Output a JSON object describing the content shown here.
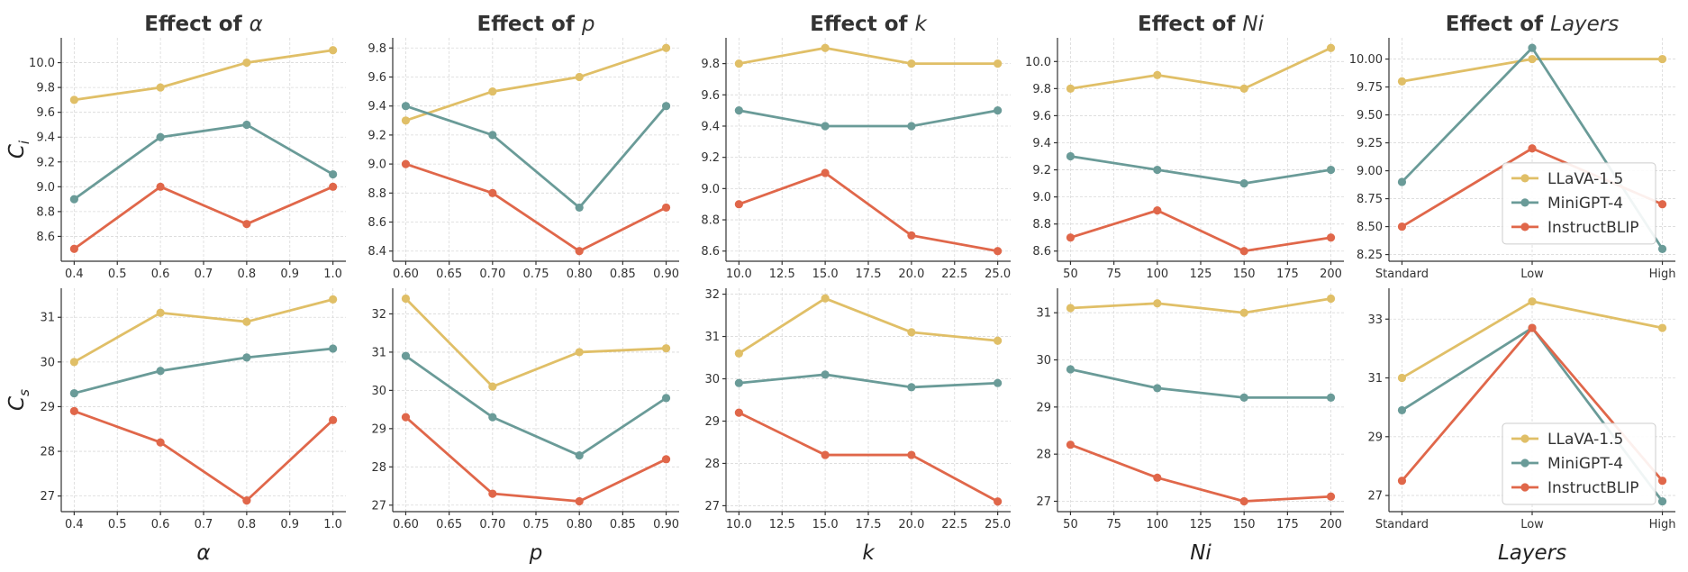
{
  "colors": {
    "LLaVA-1.5": "#e0bf67",
    "MiniGPT-4": "#6a9b98",
    "InstructBLIP": "#e0674a"
  },
  "legend": [
    "LLaVA-1.5",
    "MiniGPT-4",
    "InstructBLIP"
  ],
  "rows": [
    {
      "ylabel_main": "C",
      "ylabel_sub": "i"
    },
    {
      "ylabel_main": "C",
      "ylabel_sub": "s"
    }
  ],
  "columns": [
    {
      "title_prefix": "Effect of ",
      "title_var": "α",
      "xlabel": "α"
    },
    {
      "title_prefix": "Effect of ",
      "title_var": "p",
      "xlabel": "p"
    },
    {
      "title_prefix": "Effect of ",
      "title_var": "k",
      "xlabel": "k"
    },
    {
      "title_prefix": "Effect of ",
      "title_var": "Ni",
      "xlabel": "Ni"
    },
    {
      "title_prefix": "Effect of ",
      "title_var": "Layers",
      "xlabel": "Layers"
    }
  ],
  "chart_data": [
    {
      "type": "line",
      "x": [
        0.4,
        0.6,
        0.8,
        1.0
      ],
      "xlim": [
        0.37,
        1.03
      ],
      "xticks": [
        "0.4",
        "0.5",
        "0.6",
        "0.7",
        "0.8",
        "0.9",
        "1.0"
      ],
      "xtickvals": [
        0.4,
        0.5,
        0.6,
        0.7,
        0.8,
        0.9,
        1.0
      ],
      "ylim": [
        8.4,
        10.2
      ],
      "yticks": [
        "8.6",
        "8.8",
        "9.0",
        "9.2",
        "9.4",
        "9.6",
        "9.8",
        "10.0"
      ],
      "ytickvals": [
        8.6,
        8.8,
        9.0,
        9.2,
        9.4,
        9.6,
        9.8,
        10.0
      ],
      "series": [
        {
          "name": "LLaVA-1.5",
          "values": [
            9.7,
            9.8,
            10.0,
            10.1
          ]
        },
        {
          "name": "MiniGPT-4",
          "values": [
            8.9,
            9.4,
            9.5,
            9.1
          ]
        },
        {
          "name": "InstructBLIP",
          "values": [
            8.5,
            9.0,
            8.7,
            9.0
          ]
        }
      ]
    },
    {
      "type": "line",
      "x": [
        0.6,
        0.7,
        0.8,
        0.9
      ],
      "xlim": [
        0.585,
        0.915
      ],
      "xticks": [
        "0.60",
        "0.65",
        "0.70",
        "0.75",
        "0.80",
        "0.85",
        "0.90"
      ],
      "xtickvals": [
        0.6,
        0.65,
        0.7,
        0.75,
        0.8,
        0.85,
        0.9
      ],
      "ylim": [
        8.33,
        9.87
      ],
      "yticks": [
        "8.4",
        "8.6",
        "8.8",
        "9.0",
        "9.2",
        "9.4",
        "9.6",
        "9.8"
      ],
      "ytickvals": [
        8.4,
        8.6,
        8.8,
        9.0,
        9.2,
        9.4,
        9.6,
        9.8
      ],
      "series": [
        {
          "name": "LLaVA-1.5",
          "values": [
            9.3,
            9.5,
            9.6,
            9.8
          ]
        },
        {
          "name": "MiniGPT-4",
          "values": [
            9.4,
            9.2,
            8.7,
            9.4
          ]
        },
        {
          "name": "InstructBLIP",
          "values": [
            9.0,
            8.8,
            8.4,
            8.7
          ]
        }
      ]
    },
    {
      "type": "line",
      "x": [
        10,
        15,
        20,
        25
      ],
      "xlim": [
        9.25,
        25.75
      ],
      "xticks": [
        "10.0",
        "12.5",
        "15.0",
        "17.5",
        "20.0",
        "22.5",
        "25.0"
      ],
      "xtickvals": [
        10,
        12.5,
        15,
        17.5,
        20,
        22.5,
        25
      ],
      "ylim": [
        8.535,
        9.965
      ],
      "yticks": [
        "8.6",
        "8.8",
        "9.0",
        "9.2",
        "9.4",
        "9.6",
        "9.8"
      ],
      "ytickvals": [
        8.6,
        8.8,
        9.0,
        9.2,
        9.4,
        9.6,
        9.8
      ],
      "series": [
        {
          "name": "LLaVA-1.5",
          "values": [
            9.8,
            9.9,
            9.8,
            9.8
          ]
        },
        {
          "name": "MiniGPT-4",
          "values": [
            9.5,
            9.4,
            9.4,
            9.5
          ]
        },
        {
          "name": "InstructBLIP",
          "values": [
            8.9,
            9.1,
            8.7,
            8.6
          ]
        }
      ]
    },
    {
      "type": "line",
      "x": [
        50,
        100,
        150,
        200
      ],
      "xlim": [
        42.5,
        207.5
      ],
      "xticks": [
        "50",
        "75",
        "100",
        "125",
        "150",
        "175",
        "200"
      ],
      "xtickvals": [
        50,
        75,
        100,
        125,
        150,
        175,
        200
      ],
      "ylim": [
        8.525,
        10.175
      ],
      "yticks": [
        "8.6",
        "8.8",
        "9.0",
        "9.2",
        "9.4",
        "9.6",
        "9.8",
        "10.0"
      ],
      "ytickvals": [
        8.6,
        8.8,
        9.0,
        9.2,
        9.4,
        9.6,
        9.8,
        10.0
      ],
      "series": [
        {
          "name": "LLaVA-1.5",
          "values": [
            9.8,
            9.9,
            9.8,
            10.1
          ]
        },
        {
          "name": "MiniGPT-4",
          "values": [
            9.3,
            9.2,
            9.1,
            9.2
          ]
        },
        {
          "name": "InstructBLIP",
          "values": [
            8.7,
            8.9,
            8.6,
            8.7
          ]
        }
      ]
    },
    {
      "type": "line",
      "categories": [
        "Standard",
        "Low",
        "High"
      ],
      "x": [
        0,
        1,
        2
      ],
      "xlim": [
        -0.1,
        2.1
      ],
      "xticks": [
        "Standard",
        "Low",
        "High"
      ],
      "xtickvals": [
        0,
        1,
        2
      ],
      "ylim": [
        8.19,
        10.19
      ],
      "yticks": [
        "8.25",
        "8.50",
        "8.75",
        "9.00",
        "9.25",
        "9.50",
        "9.75",
        "10.00"
      ],
      "ytickvals": [
        8.25,
        8.5,
        8.75,
        9.0,
        9.25,
        9.5,
        9.75,
        10.0
      ],
      "legend_position": "center-right",
      "series": [
        {
          "name": "LLaVA-1.5",
          "values": [
            9.8,
            10.0,
            10.0
          ]
        },
        {
          "name": "MiniGPT-4",
          "values": [
            8.9,
            10.1,
            8.3
          ]
        },
        {
          "name": "InstructBLIP",
          "values": [
            8.5,
            9.2,
            8.7
          ]
        }
      ]
    },
    {
      "type": "line",
      "x": [
        0.4,
        0.6,
        0.8,
        1.0
      ],
      "xlim": [
        0.37,
        1.03
      ],
      "xticks": [
        "0.4",
        "0.5",
        "0.6",
        "0.7",
        "0.8",
        "0.9",
        "1.0"
      ],
      "xtickvals": [
        0.4,
        0.5,
        0.6,
        0.7,
        0.8,
        0.9,
        1.0
      ],
      "ylim": [
        26.65,
        31.65
      ],
      "yticks": [
        "27",
        "28",
        "29",
        "30",
        "31"
      ],
      "ytickvals": [
        27,
        28,
        29,
        30,
        31
      ],
      "series": [
        {
          "name": "LLaVA-1.5",
          "values": [
            30.0,
            31.1,
            30.9,
            31.4
          ]
        },
        {
          "name": "MiniGPT-4",
          "values": [
            29.3,
            29.8,
            30.1,
            30.3
          ]
        },
        {
          "name": "InstructBLIP",
          "values": [
            28.9,
            28.2,
            26.9,
            28.7
          ]
        }
      ]
    },
    {
      "type": "line",
      "x": [
        0.6,
        0.7,
        0.8,
        0.9
      ],
      "xlim": [
        0.585,
        0.915
      ],
      "xticks": [
        "0.60",
        "0.65",
        "0.70",
        "0.75",
        "0.80",
        "0.85",
        "0.90"
      ],
      "xtickvals": [
        0.6,
        0.65,
        0.7,
        0.75,
        0.8,
        0.85,
        0.9
      ],
      "ylim": [
        26.83,
        32.67
      ],
      "yticks": [
        "27",
        "28",
        "29",
        "30",
        "31",
        "32"
      ],
      "ytickvals": [
        27,
        28,
        29,
        30,
        31,
        32
      ],
      "series": [
        {
          "name": "LLaVA-1.5",
          "values": [
            32.4,
            30.1,
            31.0,
            31.1
          ]
        },
        {
          "name": "MiniGPT-4",
          "values": [
            30.9,
            29.3,
            28.3,
            29.8
          ]
        },
        {
          "name": "InstructBLIP",
          "values": [
            29.3,
            27.3,
            27.1,
            28.2
          ]
        }
      ]
    },
    {
      "type": "line",
      "x": [
        10,
        15,
        20,
        25
      ],
      "xlim": [
        9.25,
        25.75
      ],
      "xticks": [
        "10.0",
        "12.5",
        "15.0",
        "17.5",
        "20.0",
        "22.5",
        "25.0"
      ],
      "xtickvals": [
        10,
        12.5,
        15,
        17.5,
        20,
        22.5,
        25
      ],
      "ylim": [
        26.86,
        32.14
      ],
      "yticks": [
        "27",
        "28",
        "29",
        "30",
        "31",
        "32"
      ],
      "ytickvals": [
        27,
        28,
        29,
        30,
        31,
        32
      ],
      "series": [
        {
          "name": "LLaVA-1.5",
          "values": [
            30.6,
            31.9,
            31.1,
            30.9
          ]
        },
        {
          "name": "MiniGPT-4",
          "values": [
            29.9,
            30.1,
            29.8,
            29.9
          ]
        },
        {
          "name": "InstructBLIP",
          "values": [
            29.2,
            28.2,
            28.2,
            27.1
          ]
        }
      ]
    },
    {
      "type": "line",
      "x": [
        50,
        100,
        150,
        200
      ],
      "xlim": [
        42.5,
        207.5
      ],
      "xticks": [
        "50",
        "75",
        "100",
        "125",
        "150",
        "175",
        "200"
      ],
      "xtickvals": [
        50,
        75,
        100,
        125,
        150,
        175,
        200
      ],
      "ylim": [
        26.78,
        31.52
      ],
      "yticks": [
        "27",
        "28",
        "29",
        "30",
        "31"
      ],
      "ytickvals": [
        27,
        28,
        29,
        30,
        31
      ],
      "series": [
        {
          "name": "LLaVA-1.5",
          "values": [
            31.1,
            31.2,
            31.0,
            31.3
          ]
        },
        {
          "name": "MiniGPT-4",
          "values": [
            29.8,
            29.4,
            29.2,
            29.2
          ]
        },
        {
          "name": "InstructBLIP",
          "values": [
            28.2,
            27.5,
            27.0,
            27.1
          ]
        }
      ]
    },
    {
      "type": "line",
      "categories": [
        "Standard",
        "Low",
        "High"
      ],
      "x": [
        0,
        1,
        2
      ],
      "xlim": [
        -0.1,
        2.1
      ],
      "xticks": [
        "Standard",
        "Low",
        "High"
      ],
      "xtickvals": [
        0,
        1,
        2
      ],
      "ylim": [
        26.45,
        34.05
      ],
      "yticks": [
        "27",
        "29",
        "31",
        "33"
      ],
      "ytickvals": [
        27,
        29,
        31,
        33
      ],
      "legend_position": "lower-right",
      "series": [
        {
          "name": "LLaVA-1.5",
          "values": [
            31.0,
            33.6,
            32.7
          ]
        },
        {
          "name": "MiniGPT-4",
          "values": [
            29.9,
            32.7,
            26.8
          ]
        },
        {
          "name": "InstructBLIP",
          "values": [
            27.5,
            32.7,
            27.5
          ]
        }
      ]
    }
  ]
}
